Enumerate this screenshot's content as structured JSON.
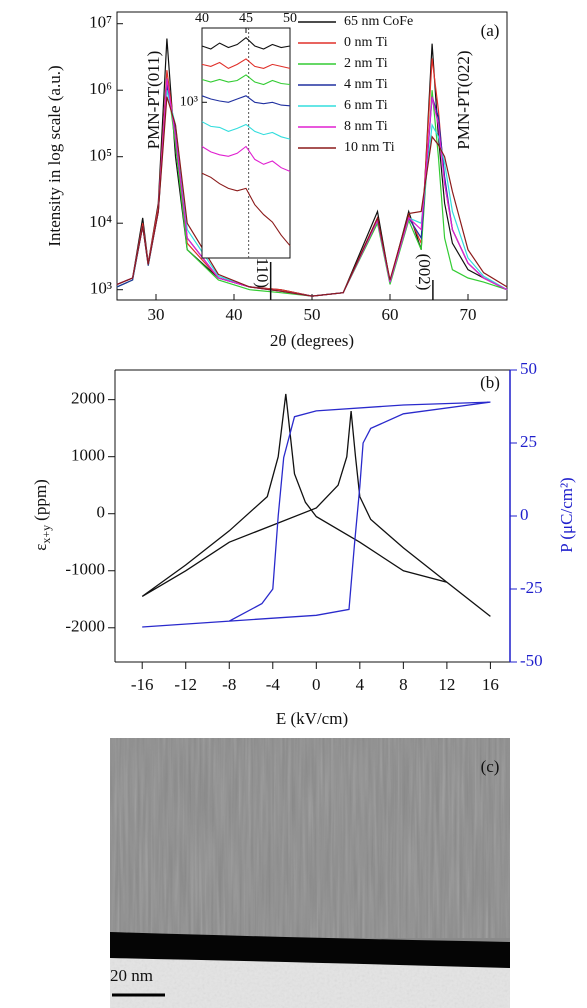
{
  "chart_data": [
    {
      "type": "line",
      "panel_label": "(a)",
      "x_label": "2θ (degrees)",
      "y_label": "Intensity in log scale (a.u.)",
      "xlim": [
        25,
        75
      ],
      "xticks": [
        30,
        40,
        50,
        60,
        70
      ],
      "ylim": [
        700,
        15000000
      ],
      "log_y": true,
      "yticks": [
        {
          "value": 1000,
          "label": "10³"
        },
        {
          "value": 10000,
          "label": "10⁴"
        },
        {
          "value": 100000,
          "label": "10⁵"
        },
        {
          "value": 1000000,
          "label": "10⁶"
        },
        {
          "value": 10000000,
          "label": "10⁷"
        }
      ],
      "legend": "upper right",
      "x": [
        25,
        27,
        28.3,
        29,
        30.3,
        31.4,
        32.5,
        34,
        38,
        42,
        46,
        50,
        54,
        58.4,
        60,
        62.4,
        64,
        65.4,
        66.2,
        67,
        68,
        70,
        72,
        75
      ],
      "series": [
        {
          "name": "65 nm CoFe",
          "color": "#111111",
          "values": [
            1200,
            1500,
            12000,
            2500,
            20000,
            6000000,
            100000,
            4000,
            1500,
            1100,
            1000,
            800,
            900,
            15000,
            1300,
            15000,
            4000,
            5000000,
            200000,
            20000,
            5000,
            2000,
            1500,
            1000
          ]
        },
        {
          "name": "0 nm Ti",
          "color": "#e0302a",
          "values": [
            1200,
            1500,
            10000,
            2500,
            18000,
            2000000,
            200000,
            5000,
            1500,
            1100,
            1000,
            800,
            900,
            12000,
            1300,
            13000,
            5000,
            3000000,
            500000,
            40000,
            8000,
            2500,
            1500,
            1000
          ]
        },
        {
          "name": "2 nm Ti",
          "color": "#33cc33",
          "values": [
            1100,
            1400,
            9000,
            2300,
            15000,
            1500000,
            150000,
            4000,
            1400,
            1000,
            900,
            800,
            900,
            10000,
            1200,
            11000,
            4000,
            1000000,
            100000,
            6000,
            2000,
            1500,
            1300,
            1000
          ]
        },
        {
          "name": "4 nm Ti",
          "color": "#2030a0",
          "values": [
            1100,
            1400,
            9000,
            2300,
            15000,
            1200000,
            250000,
            6000,
            1500,
            1100,
            950,
            800,
            900,
            11000,
            1300,
            12000,
            6000,
            800000,
            400000,
            50000,
            8000,
            2500,
            1500,
            1000
          ]
        },
        {
          "name": "6 nm Ti",
          "color": "#33dddd",
          "values": [
            1200,
            1500,
            9000,
            2400,
            15000,
            1000000,
            300000,
            8000,
            1600,
            1100,
            950,
            800,
            900,
            11000,
            1300,
            12000,
            10000,
            300000,
            200000,
            80000,
            15000,
            3000,
            1600,
            1000
          ]
        },
        {
          "name": "8 nm Ti",
          "color": "#e020d0",
          "values": [
            1200,
            1500,
            9000,
            2400,
            15000,
            1500000,
            200000,
            6000,
            1500,
            1100,
            950,
            800,
            900,
            11000,
            1300,
            12000,
            8000,
            800000,
            300000,
            40000,
            8000,
            2500,
            1500,
            1000
          ]
        },
        {
          "name": "10 nm Ti",
          "color": "#8b1a1a",
          "values": [
            1200,
            1500,
            9000,
            2400,
            15000,
            800000,
            300000,
            10000,
            1700,
            1100,
            950,
            800,
            900,
            12000,
            1400,
            14000,
            15000,
            200000,
            150000,
            100000,
            30000,
            4000,
            1800,
            1100
          ]
        }
      ],
      "annotations": [
        "PMN-PT(011)",
        "PMN-PT(022)"
      ],
      "reference_lines": [
        {
          "x": 44.7,
          "label": "(110)"
        },
        {
          "x": 65.5,
          "label": "(002)"
        }
      ],
      "inset": {
        "xlim": [
          40,
          50
        ],
        "xticks": [
          40,
          45,
          50
        ],
        "ylim": [
          100,
          3000
        ],
        "log_y": true,
        "yticks": [
          {
            "value": 1000,
            "label": "10³"
          }
        ],
        "reference_x": 45.3,
        "x": [
          40,
          41,
          42,
          43,
          44,
          45,
          46,
          47,
          48,
          49,
          50
        ],
        "series": [
          {
            "color": "#111111",
            "values": [
              2300,
              2200,
              2400,
              2250,
              2350,
              2600,
              2300,
              2200,
              2350,
              2250,
              2300
            ]
          },
          {
            "color": "#e0302a",
            "values": [
              1750,
              1700,
              1800,
              1650,
              1750,
              1900,
              1700,
              1650,
              1750,
              1700,
              1650
            ]
          },
          {
            "color": "#33cc33",
            "values": [
              1400,
              1350,
              1400,
              1350,
              1380,
              1500,
              1350,
              1300,
              1380,
              1320,
              1300
            ]
          },
          {
            "color": "#2030a0",
            "values": [
              1100,
              1050,
              1020,
              1000,
              1050,
              1100,
              1000,
              980,
              1000,
              960,
              950
            ]
          },
          {
            "color": "#33dddd",
            "values": [
              750,
              700,
              690,
              650,
              680,
              720,
              650,
              620,
              640,
              600,
              580
            ]
          },
          {
            "color": "#e020d0",
            "values": [
              520,
              480,
              460,
              450,
              470,
              520,
              430,
              400,
              420,
              380,
              360
            ]
          },
          {
            "color": "#8b1a1a",
            "values": [
              350,
              330,
              300,
              280,
              270,
              280,
              220,
              190,
              170,
              140,
              120
            ]
          }
        ]
      }
    },
    {
      "type": "line",
      "panel_label": "(b)",
      "x_label": "E (kV/cm)",
      "y_label": "ε",
      "y_label_sub": "x+y",
      "y_label_unit": "(ppm)",
      "y2_label": "P (μC/cm²)",
      "y2_color": "#1f1fcc",
      "xlim": [
        -18.5,
        17.8
      ],
      "xticks": [
        -16,
        -12,
        -8,
        -4,
        0,
        4,
        8,
        12,
        16
      ],
      "ylim": [
        -2600,
        2520
      ],
      "yticks": [
        -2000,
        -1000,
        0,
        1000,
        2000
      ],
      "y2lim": [
        -50,
        50
      ],
      "y2ticks": [
        -50,
        -25,
        0,
        25,
        50
      ],
      "series": [
        {
          "color": "#111111",
          "x": [
            -16,
            -12,
            -8,
            -4,
            0,
            2,
            2.8,
            3.2,
            3.6,
            4,
            5,
            8,
            12,
            16,
            12,
            8,
            4,
            0,
            -1,
            -2,
            -2.8,
            -3.5,
            -4.5,
            -8,
            -12,
            -16
          ],
          "values": [
            -1450,
            -1000,
            -500,
            -200,
            100,
            500,
            1000,
            1800,
            1000,
            300,
            -100,
            -600,
            -1200,
            -1800,
            -1200,
            -1000,
            -500,
            -50,
            200,
            700,
            2100,
            1000,
            300,
            -300,
            -900,
            -1450
          ]
        },
        {
          "color": "#2a2acc",
          "axis": "y2",
          "x": [
            -16,
            -8,
            0,
            3,
            3.5,
            4,
            4.3,
            5,
            8,
            16,
            8,
            0,
            -2,
            -3,
            -3.5,
            -4,
            -5,
            -8,
            -16
          ],
          "values": [
            -38,
            -36,
            -34,
            -32,
            -10,
            10,
            25,
            30,
            35,
            39,
            38,
            36,
            34,
            20,
            0,
            -25,
            -30,
            -36,
            -38
          ]
        }
      ]
    }
  ],
  "image_panel": {
    "label": "(c)",
    "scale_bar": "20 nm"
  }
}
